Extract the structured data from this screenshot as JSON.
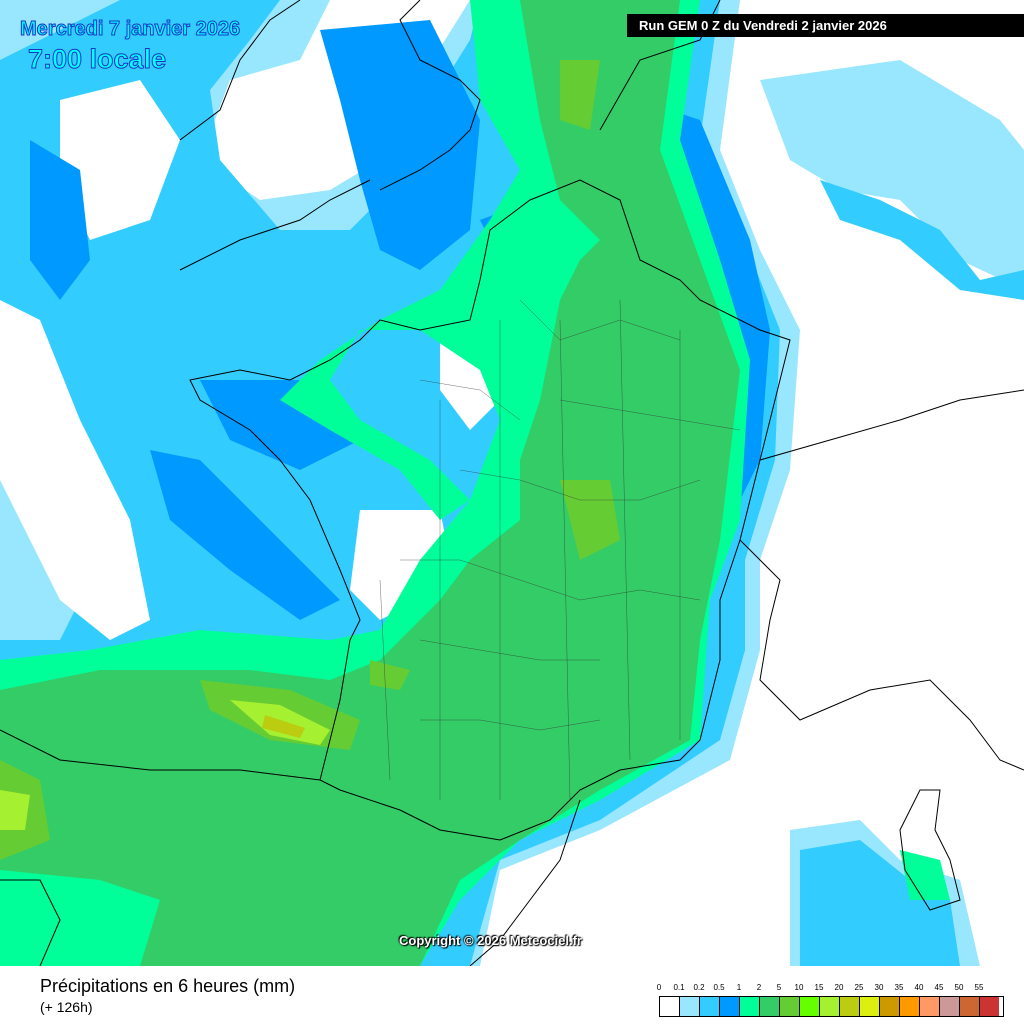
{
  "header": {
    "date": "Mercredi 7 janvier 2026",
    "time": "7:00 locale",
    "run": "Run GEM 0 Z du Vendredi 2 janvier 2026"
  },
  "copyright": "Copyright © 2026 Meteociel.fr",
  "footer": {
    "parameter": "Précipitations en 6 heures (mm)",
    "lead_time": "(+ 126h)"
  },
  "legend": {
    "labels": [
      "0",
      "0.1",
      "0.2",
      "0.5",
      "1",
      "2",
      "5",
      "10",
      "15",
      "20",
      "25",
      "30",
      "35",
      "40",
      "45",
      "50",
      "55"
    ],
    "colors": [
      "#ffffff",
      "#99e6ff",
      "#33ccff",
      "#0099ff",
      "#00ff99",
      "#33cc66",
      "#66cc33",
      "#66ff00",
      "#a6f032",
      "#bbcc11",
      "#ddee11",
      "#cc9900",
      "#ff9900",
      "#ff9966",
      "#cc9999",
      "#cc6633",
      "#cc3333"
    ]
  }
}
